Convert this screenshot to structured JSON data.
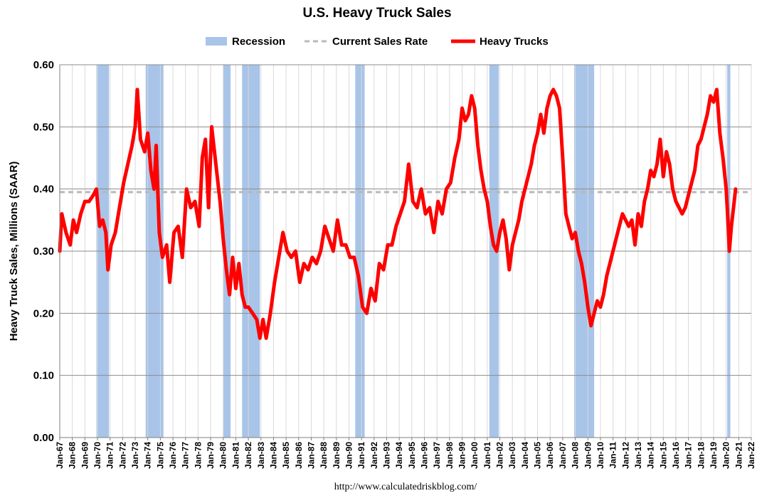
{
  "chart_data": {
    "type": "line",
    "title": "U.S. Heavy Truck Sales",
    "ylabel": "Heavy Truck Sales, Millions (SAAR)",
    "xlabel": "",
    "source_text": "http://www.calculatedriskblog.com/",
    "ylim": [
      0,
      0.6
    ],
    "xlim": [
      "Jan-67",
      "Jan-22"
    ],
    "grid": true,
    "legend_position": "top-center",
    "y_ticks": [
      "0.00",
      "0.10",
      "0.20",
      "0.30",
      "0.40",
      "0.50",
      "0.60"
    ],
    "x_ticks": [
      "Jan-67",
      "Jan-68",
      "Jan-69",
      "Jan-70",
      "Jan-71",
      "Jan-72",
      "Jan-73",
      "Jan-74",
      "Jan-75",
      "Jan-76",
      "Jan-77",
      "Jan-78",
      "Jan-79",
      "Jan-80",
      "Jan-81",
      "Jan-82",
      "Jan-83",
      "Jan-84",
      "Jan-85",
      "Jan-86",
      "Jan-87",
      "Jan-88",
      "Jan-89",
      "Jan-90",
      "Jan-91",
      "Jan-92",
      "Jan-93",
      "Jan-94",
      "Jan-95",
      "Jan-96",
      "Jan-97",
      "Jan-98",
      "Jan-99",
      "Jan-00",
      "Jan-01",
      "Jan-02",
      "Jan-03",
      "Jan-04",
      "Jan-05",
      "Jan-06",
      "Jan-07",
      "Jan-08",
      "Jan-09",
      "Jan-10",
      "Jan-11",
      "Jan-12",
      "Jan-13",
      "Jan-14",
      "Jan-15",
      "Jan-16",
      "Jan-17",
      "Jan-18",
      "Jan-19",
      "Jan-20",
      "Jan-21",
      "Jan-22"
    ],
    "legend": [
      {
        "name": "Recession",
        "color": "#a8c4e8",
        "kind": "box"
      },
      {
        "name": "Current Sales Rate",
        "color": "#b8b8b8",
        "kind": "dash"
      },
      {
        "name": "Heavy Trucks",
        "color": "#ff0000",
        "kind": "line"
      }
    ],
    "current_sales_rate": 0.395,
    "recessions": [
      [
        "1969-12",
        "1970-11"
      ],
      [
        "1973-11",
        "1975-03"
      ],
      [
        "1980-01",
        "1980-07"
      ],
      [
        "1981-07",
        "1982-11"
      ],
      [
        "1990-07",
        "1991-03"
      ],
      [
        "2001-03",
        "2001-11"
      ],
      [
        "2007-12",
        "2009-06"
      ],
      [
        "2020-02",
        "2020-04"
      ]
    ],
    "series": [
      {
        "name": "Heavy Trucks",
        "color": "#ff0000",
        "points": [
          [
            "1967-01",
            0.3
          ],
          [
            "1967-03",
            0.36
          ],
          [
            "1967-07",
            0.33
          ],
          [
            "1967-11",
            0.31
          ],
          [
            "1968-02",
            0.35
          ],
          [
            "1968-05",
            0.33
          ],
          [
            "1968-09",
            0.36
          ],
          [
            "1969-01",
            0.38
          ],
          [
            "1969-05",
            0.38
          ],
          [
            "1969-09",
            0.39
          ],
          [
            "1969-12",
            0.4
          ],
          [
            "1970-03",
            0.34
          ],
          [
            "1970-06",
            0.35
          ],
          [
            "1970-09",
            0.33
          ],
          [
            "1970-11",
            0.27
          ],
          [
            "1971-02",
            0.31
          ],
          [
            "1971-06",
            0.33
          ],
          [
            "1971-10",
            0.37
          ],
          [
            "1972-02",
            0.41
          ],
          [
            "1972-06",
            0.44
          ],
          [
            "1972-10",
            0.47
          ],
          [
            "1973-01",
            0.5
          ],
          [
            "1973-03",
            0.56
          ],
          [
            "1973-06",
            0.48
          ],
          [
            "1973-10",
            0.46
          ],
          [
            "1974-01",
            0.49
          ],
          [
            "1974-04",
            0.43
          ],
          [
            "1974-07",
            0.4
          ],
          [
            "1974-09",
            0.47
          ],
          [
            "1974-12",
            0.33
          ],
          [
            "1975-03",
            0.29
          ],
          [
            "1975-07",
            0.31
          ],
          [
            "1975-10",
            0.25
          ],
          [
            "1976-02",
            0.33
          ],
          [
            "1976-06",
            0.34
          ],
          [
            "1976-10",
            0.29
          ],
          [
            "1977-02",
            0.4
          ],
          [
            "1977-06",
            0.37
          ],
          [
            "1977-10",
            0.38
          ],
          [
            "1978-02",
            0.34
          ],
          [
            "1978-05",
            0.45
          ],
          [
            "1978-08",
            0.48
          ],
          [
            "1978-11",
            0.37
          ],
          [
            "1979-02",
            0.5
          ],
          [
            "1979-06",
            0.44
          ],
          [
            "1979-10",
            0.38
          ],
          [
            "1980-01",
            0.32
          ],
          [
            "1980-04",
            0.27
          ],
          [
            "1980-07",
            0.23
          ],
          [
            "1980-10",
            0.29
          ],
          [
            "1981-01",
            0.24
          ],
          [
            "1981-04",
            0.28
          ],
          [
            "1981-07",
            0.23
          ],
          [
            "1981-10",
            0.21
          ],
          [
            "1982-01",
            0.21
          ],
          [
            "1982-05",
            0.2
          ],
          [
            "1982-09",
            0.19
          ],
          [
            "1982-12",
            0.16
          ],
          [
            "1983-03",
            0.19
          ],
          [
            "1983-06",
            0.16
          ],
          [
            "1983-10",
            0.2
          ],
          [
            "1984-02",
            0.25
          ],
          [
            "1984-06",
            0.29
          ],
          [
            "1984-10",
            0.33
          ],
          [
            "1985-02",
            0.3
          ],
          [
            "1985-06",
            0.29
          ],
          [
            "1985-10",
            0.3
          ],
          [
            "1986-02",
            0.25
          ],
          [
            "1986-06",
            0.28
          ],
          [
            "1986-10",
            0.27
          ],
          [
            "1987-02",
            0.29
          ],
          [
            "1987-06",
            0.28
          ],
          [
            "1987-10",
            0.3
          ],
          [
            "1988-02",
            0.34
          ],
          [
            "1988-06",
            0.32
          ],
          [
            "1988-10",
            0.3
          ],
          [
            "1989-02",
            0.35
          ],
          [
            "1989-06",
            0.31
          ],
          [
            "1989-10",
            0.31
          ],
          [
            "1990-02",
            0.29
          ],
          [
            "1990-06",
            0.29
          ],
          [
            "1990-10",
            0.26
          ],
          [
            "1991-02",
            0.21
          ],
          [
            "1991-06",
            0.2
          ],
          [
            "1991-10",
            0.24
          ],
          [
            "1992-02",
            0.22
          ],
          [
            "1992-06",
            0.28
          ],
          [
            "1992-10",
            0.27
          ],
          [
            "1993-02",
            0.31
          ],
          [
            "1993-06",
            0.31
          ],
          [
            "1993-10",
            0.34
          ],
          [
            "1994-02",
            0.36
          ],
          [
            "1994-06",
            0.38
          ],
          [
            "1994-10",
            0.44
          ],
          [
            "1995-02",
            0.38
          ],
          [
            "1995-06",
            0.37
          ],
          [
            "1995-10",
            0.4
          ],
          [
            "1996-02",
            0.36
          ],
          [
            "1996-06",
            0.37
          ],
          [
            "1996-10",
            0.33
          ],
          [
            "1997-02",
            0.38
          ],
          [
            "1997-06",
            0.36
          ],
          [
            "1997-10",
            0.4
          ],
          [
            "1998-02",
            0.41
          ],
          [
            "1998-06",
            0.45
          ],
          [
            "1998-10",
            0.48
          ],
          [
            "1999-01",
            0.53
          ],
          [
            "1999-04",
            0.51
          ],
          [
            "1999-07",
            0.52
          ],
          [
            "1999-10",
            0.55
          ],
          [
            "2000-01",
            0.53
          ],
          [
            "2000-04",
            0.47
          ],
          [
            "2000-07",
            0.43
          ],
          [
            "2000-10",
            0.4
          ],
          [
            "2001-01",
            0.38
          ],
          [
            "2001-04",
            0.34
          ],
          [
            "2001-07",
            0.31
          ],
          [
            "2001-10",
            0.3
          ],
          [
            "2002-01",
            0.33
          ],
          [
            "2002-04",
            0.35
          ],
          [
            "2002-07",
            0.32
          ],
          [
            "2002-10",
            0.27
          ],
          [
            "2003-01",
            0.31
          ],
          [
            "2003-04",
            0.33
          ],
          [
            "2003-07",
            0.35
          ],
          [
            "2003-10",
            0.38
          ],
          [
            "2004-01",
            0.4
          ],
          [
            "2004-04",
            0.42
          ],
          [
            "2004-07",
            0.44
          ],
          [
            "2004-10",
            0.47
          ],
          [
            "2005-01",
            0.49
          ],
          [
            "2005-04",
            0.52
          ],
          [
            "2005-07",
            0.49
          ],
          [
            "2005-10",
            0.53
          ],
          [
            "2006-01",
            0.55
          ],
          [
            "2006-04",
            0.56
          ],
          [
            "2006-07",
            0.55
          ],
          [
            "2006-10",
            0.53
          ],
          [
            "2007-01",
            0.45
          ],
          [
            "2007-04",
            0.36
          ],
          [
            "2007-07",
            0.34
          ],
          [
            "2007-10",
            0.32
          ],
          [
            "2008-01",
            0.33
          ],
          [
            "2008-04",
            0.3
          ],
          [
            "2008-07",
            0.28
          ],
          [
            "2008-10",
            0.25
          ],
          [
            "2009-01",
            0.21
          ],
          [
            "2009-04",
            0.18
          ],
          [
            "2009-07",
            0.2
          ],
          [
            "2009-10",
            0.22
          ],
          [
            "2010-01",
            0.21
          ],
          [
            "2010-04",
            0.23
          ],
          [
            "2010-07",
            0.26
          ],
          [
            "2010-10",
            0.28
          ],
          [
            "2011-01",
            0.3
          ],
          [
            "2011-04",
            0.32
          ],
          [
            "2011-07",
            0.34
          ],
          [
            "2011-10",
            0.36
          ],
          [
            "2012-01",
            0.35
          ],
          [
            "2012-04",
            0.34
          ],
          [
            "2012-07",
            0.35
          ],
          [
            "2012-10",
            0.31
          ],
          [
            "2013-01",
            0.36
          ],
          [
            "2013-04",
            0.34
          ],
          [
            "2013-07",
            0.38
          ],
          [
            "2013-10",
            0.4
          ],
          [
            "2014-01",
            0.43
          ],
          [
            "2014-04",
            0.42
          ],
          [
            "2014-07",
            0.44
          ],
          [
            "2014-10",
            0.48
          ],
          [
            "2015-01",
            0.42
          ],
          [
            "2015-04",
            0.46
          ],
          [
            "2015-07",
            0.44
          ],
          [
            "2015-10",
            0.4
          ],
          [
            "2016-01",
            0.38
          ],
          [
            "2016-04",
            0.37
          ],
          [
            "2016-07",
            0.36
          ],
          [
            "2016-10",
            0.37
          ],
          [
            "2017-01",
            0.39
          ],
          [
            "2017-04",
            0.41
          ],
          [
            "2017-07",
            0.43
          ],
          [
            "2017-10",
            0.47
          ],
          [
            "2018-01",
            0.48
          ],
          [
            "2018-04",
            0.5
          ],
          [
            "2018-07",
            0.52
          ],
          [
            "2018-10",
            0.55
          ],
          [
            "2019-01",
            0.54
          ],
          [
            "2019-04",
            0.56
          ],
          [
            "2019-07",
            0.49
          ],
          [
            "2019-10",
            0.45
          ],
          [
            "2020-01",
            0.4
          ],
          [
            "2020-03",
            0.34
          ],
          [
            "2020-04",
            0.3
          ],
          [
            "2020-06",
            0.34
          ],
          [
            "2020-08",
            0.37
          ],
          [
            "2020-10",
            0.4
          ]
        ]
      }
    ]
  }
}
